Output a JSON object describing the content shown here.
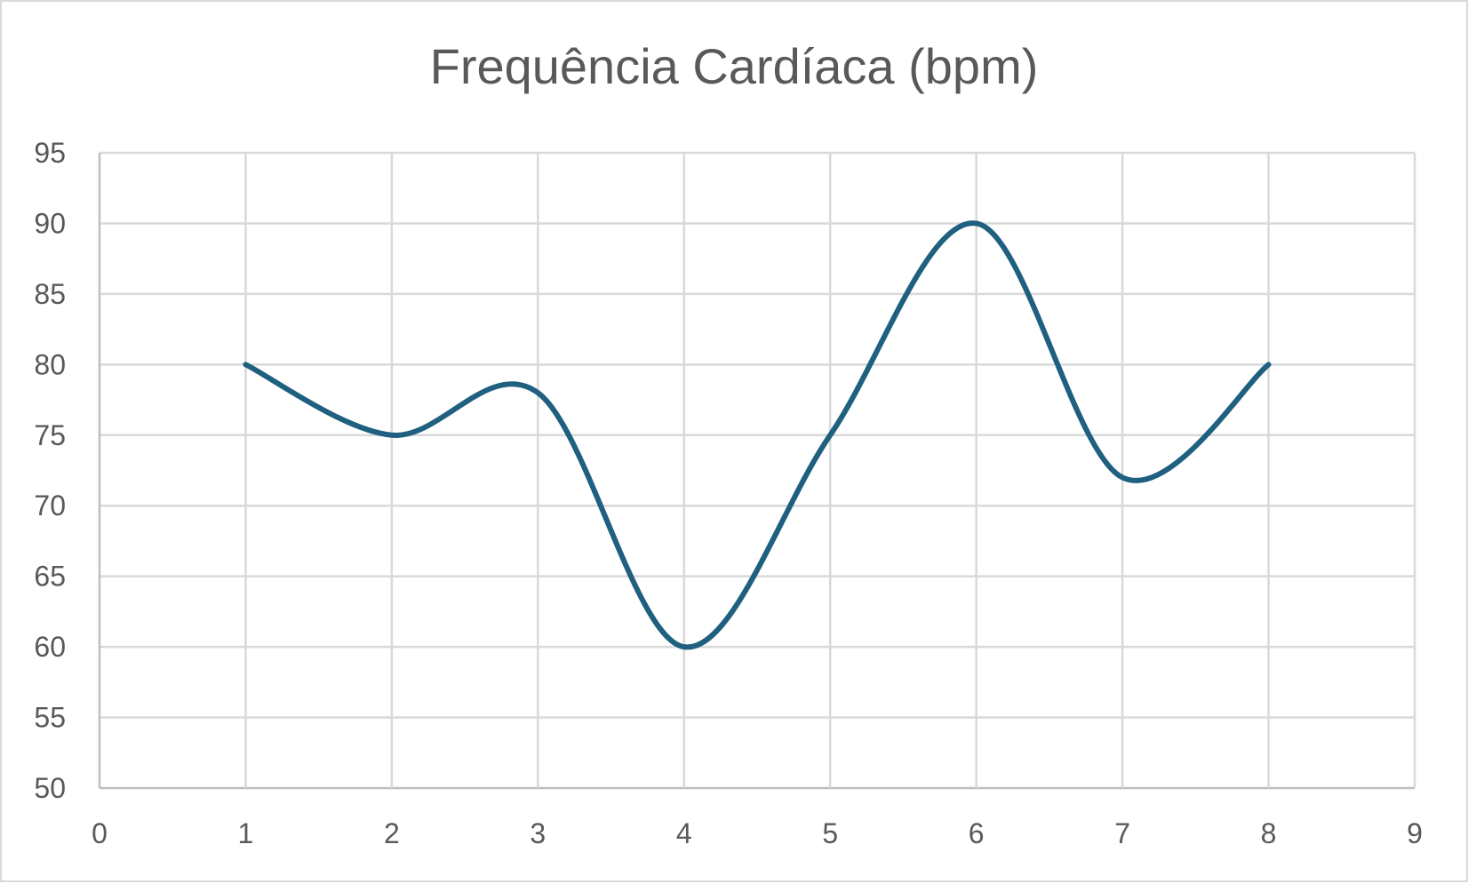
{
  "chart_data": {
    "type": "line",
    "title": "Frequência Cardíaca (bpm)",
    "xlabel": "",
    "ylabel": "",
    "xlim": [
      0,
      9
    ],
    "ylim": [
      50,
      95
    ],
    "xticks": [
      0,
      1,
      2,
      3,
      4,
      5,
      6,
      7,
      8,
      9
    ],
    "yticks": [
      50,
      55,
      60,
      65,
      70,
      75,
      80,
      85,
      90,
      95
    ],
    "grid": true,
    "smooth": true,
    "series": [
      {
        "color": "#1f5f7f",
        "x": [
          1,
          2,
          3,
          4,
          5,
          6,
          7,
          8
        ],
        "y": [
          80,
          75,
          78,
          60,
          75,
          90,
          72,
          80
        ]
      }
    ]
  }
}
